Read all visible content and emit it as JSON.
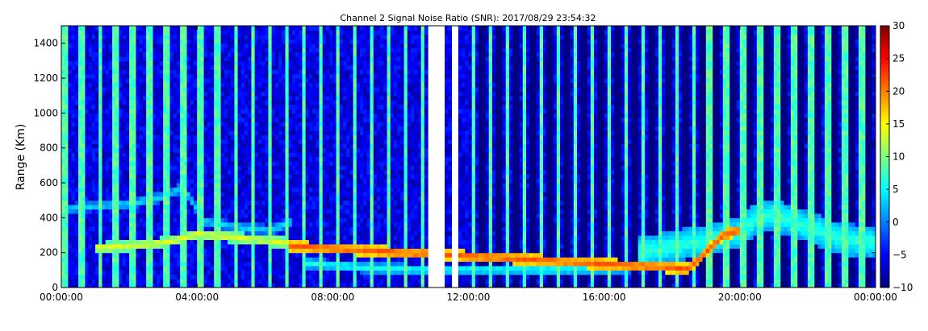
{
  "chart_data": {
    "type": "heatmap",
    "title": "Channel 2 Signal Noise Ratio (SNR): 2017/08/29 23:54:32",
    "xlabel": "",
    "ylabel": "Range (Km)",
    "x_axis": {
      "unit": "hours",
      "range": [
        0,
        24
      ],
      "ticks": [
        0,
        4,
        8,
        12,
        16,
        20,
        24
      ],
      "tick_labels": [
        "00:00:00",
        "04:00:00",
        "08:00:00",
        "12:00:00",
        "16:00:00",
        "20:00:00",
        "00:00:00"
      ]
    },
    "y_axis": {
      "range": [
        0,
        1500
      ],
      "ticks": [
        0,
        200,
        400,
        600,
        800,
        1000,
        1200,
        1400
      ],
      "tick_labels": [
        "0",
        "200",
        "400",
        "600",
        "800",
        "1000",
        "1200",
        "1400"
      ]
    },
    "colorbar": {
      "range": [
        -10,
        30
      ],
      "ticks": [
        -10,
        -5,
        0,
        5,
        10,
        15,
        20,
        25,
        30
      ],
      "tick_labels": [
        "−10",
        "−5",
        "0",
        "5",
        "10",
        "15",
        "20",
        "25",
        "30"
      ],
      "colormap": "jet",
      "colors": [
        "#00007f",
        "#0000ff",
        "#007fff",
        "#00ffff",
        "#7fff7f",
        "#ffff00",
        "#ff7f00",
        "#ff0000",
        "#7f0000"
      ]
    },
    "grid": false,
    "data_gaps_hours": [
      [
        10.75,
        11.25
      ],
      [
        11.5,
        11.7
      ]
    ],
    "noise_floor_snr": -6,
    "periodic_high_snr_columns": {
      "start_hour": 0.05,
      "period_hours": 0.5,
      "snr": 8
    },
    "blank_columns_from_hour": 12.0,
    "features": [
      {
        "name": "low range echo trace",
        "hours": [
          0.1,
          0.5,
          1.0,
          2.0,
          3.0,
          3.6,
          4.2,
          4.8,
          5.5,
          6.2,
          6.8
        ],
        "range_km": [
          450,
          460,
          470,
          480,
          520,
          580,
          380,
          360,
          340,
          330,
          380
        ],
        "snr": 4
      },
      {
        "name": "sporadic-E bright trace",
        "hours": [
          1.0,
          1.5,
          2.0,
          2.5,
          3.0,
          3.5,
          4.0,
          6.6,
          7.0
        ],
        "range_km": [
          230,
          235,
          240,
          245,
          260,
          280,
          310,
          260,
          240
        ],
        "snr": 14
      },
      {
        "name": "near range trace",
        "hours": [
          7.2,
          8.0,
          9.0,
          10.0,
          10.7,
          11.7,
          13.0,
          15.0,
          16.0,
          17.0
        ],
        "range_km": [
          140,
          130,
          115,
          108,
          105,
          105,
          105,
          105,
          110,
          120
        ],
        "snr": 6
      },
      {
        "name": "evening spread echo",
        "hours": [
          17.0,
          18.0,
          19.0,
          20.0,
          20.5,
          21.0,
          22.0,
          23.0,
          24.0
        ],
        "range_km": [
          200,
          240,
          270,
          320,
          400,
          420,
          350,
          280,
          260
        ],
        "snr": 7
      },
      {
        "name": "bright spots",
        "hours": [
          6.65,
          18.5,
          19.5,
          20.0
        ],
        "range_km": [
          240,
          110,
          300,
          330
        ],
        "snr": 22
      }
    ]
  }
}
